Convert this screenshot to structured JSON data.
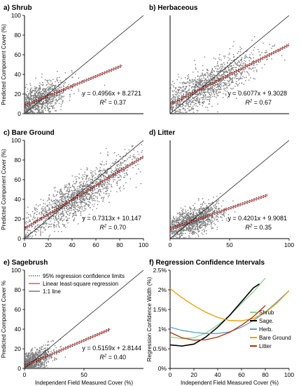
{
  "chart_data": [
    {
      "type": "scatter",
      "title": "a)   Shrub",
      "ylabel": "Predicted Component Cover (%)",
      "xlabel": "",
      "xlim": [
        0,
        100
      ],
      "ylim": [
        0,
        100
      ],
      "xticks": [],
      "yticks": [
        0,
        20,
        40,
        60,
        80,
        100
      ],
      "equation": "y = 0.4956x + 8.2721",
      "r2_label": "R",
      "r2_value": "= 0.37",
      "slope": 0.4956,
      "intercept": 8.2721,
      "fit_range": [
        0,
        82
      ],
      "cloud": {
        "x_mean": 12,
        "x_sd": 12,
        "x_max": 82,
        "noise_sd": 8,
        "n": 900,
        "seed": 11
      }
    },
    {
      "type": "scatter",
      "title": "b) Herbaceous",
      "ylabel": "",
      "xlabel": "",
      "xlim": [
        0,
        100
      ],
      "ylim": [
        0,
        100
      ],
      "xticks": [],
      "yticks": [],
      "equation": "y = 0.6077x + 9.3028",
      "r2_label": "R",
      "r2_value": "= 0.67",
      "slope": 0.6077,
      "intercept": 9.3028,
      "fit_range": [
        0,
        100
      ],
      "cloud": {
        "x_mean": 30,
        "x_sd": 22,
        "x_max": 100,
        "noise_sd": 10,
        "n": 1200,
        "seed": 23
      }
    },
    {
      "type": "scatter",
      "title": "c) Bare Ground",
      "ylabel": "Predicted Component Cover (%)",
      "xlabel": "",
      "xlim": [
        0,
        100
      ],
      "ylim": [
        0,
        100
      ],
      "xticks": [
        0,
        20,
        40,
        60,
        80,
        100
      ],
      "yticks": [
        0,
        20,
        40,
        60,
        80,
        100
      ],
      "equation": "y = 0.7313x + 10.147",
      "r2_label": "R",
      "r2_value": "= 0.70",
      "slope": 0.7313,
      "intercept": 10.147,
      "fit_range": [
        0,
        100
      ],
      "cloud": {
        "x_mean": 45,
        "x_sd": 22,
        "x_max": 100,
        "noise_sd": 10,
        "n": 1400,
        "seed": 37
      }
    },
    {
      "type": "scatter",
      "title": "d) Litter",
      "ylabel": "",
      "xlabel": "",
      "xlim": [
        0,
        100
      ],
      "ylim": [
        0,
        100
      ],
      "xticks": [
        0,
        50,
        100
      ],
      "yticks": [],
      "equation": "y = 0.4201x + 9.9081",
      "r2_label": "R",
      "r2_value": "= 0.35",
      "slope": 0.4201,
      "intercept": 9.9081,
      "fit_range": [
        0,
        82
      ],
      "cloud": {
        "x_mean": 20,
        "x_sd": 12,
        "x_max": 80,
        "noise_sd": 7,
        "n": 1100,
        "seed": 53
      }
    },
    {
      "type": "scatter",
      "title": "e) Sagebrush",
      "ylabel": "Predicted Component Cover %",
      "xlabel": "Independent Field Measured Cover (%)",
      "xlim": [
        0,
        100
      ],
      "ylim": [
        0,
        100
      ],
      "xticks": [
        0,
        50
      ],
      "yticks": [
        0,
        20,
        40,
        60,
        80,
        100
      ],
      "equation": "y = 0.5159x + 2.8144",
      "r2_label": "R",
      "r2_value": "= 0.40",
      "slope": 0.5159,
      "intercept": 2.8144,
      "fit_range": [
        0,
        72
      ],
      "cloud": {
        "x_mean": 6,
        "x_sd": 9,
        "x_max": 72,
        "noise_sd": 6,
        "n": 800,
        "seed": 71
      },
      "legend": [
        {
          "label": "95% regression confidence limits",
          "style": "dotted",
          "color": "#222222"
        },
        {
          "label": "Linear least-square regression",
          "style": "solid",
          "color": "#e03030"
        },
        {
          "label": "1:1 line",
          "style": "solid",
          "color": "#555555"
        }
      ]
    },
    {
      "type": "line",
      "title": "f) Regression Confidence Intervals",
      "ylabel": "Regression Confidence Width (%)",
      "xlabel": "Independent Field Measured Cover (%)",
      "xlim": [
        0,
        100
      ],
      "ylim": [
        0,
        2.5
      ],
      "xticks": [
        0,
        20,
        40,
        60,
        80,
        100
      ],
      "yticks": [
        0,
        0.5,
        1,
        1.5,
        2,
        2.5
      ],
      "ytick_labels": [
        "0%",
        "0.5%",
        "1%",
        "1.5%",
        "2%",
        "2.5%"
      ],
      "series": [
        {
          "name": "Shrub",
          "color": "#8ed48e",
          "points": [
            [
              0,
              0.8
            ],
            [
              10,
              0.76
            ],
            [
              20,
              0.78
            ],
            [
              30,
              0.9
            ],
            [
              40,
              1.1
            ],
            [
              50,
              1.35
            ],
            [
              60,
              1.65
            ],
            [
              70,
              1.95
            ],
            [
              80,
              2.3
            ]
          ]
        },
        {
          "name": "Sage.",
          "color": "#000000",
          "points": [
            [
              0,
              0.6
            ],
            [
              10,
              0.57
            ],
            [
              20,
              0.62
            ],
            [
              30,
              0.8
            ],
            [
              40,
              1.05
            ],
            [
              50,
              1.35
            ],
            [
              60,
              1.7
            ],
            [
              70,
              2.05
            ],
            [
              75,
              2.15
            ]
          ]
        },
        {
          "name": "Herb.",
          "color": "#5b9bd5",
          "points": [
            [
              0,
              1.05
            ],
            [
              10,
              0.97
            ],
            [
              20,
              0.92
            ],
            [
              30,
              0.89
            ],
            [
              40,
              0.89
            ],
            [
              50,
              0.93
            ],
            [
              60,
              1.05
            ],
            [
              70,
              1.22
            ],
            [
              80,
              1.43
            ],
            [
              90,
              1.7
            ],
            [
              100,
              1.98
            ]
          ]
        },
        {
          "name": "Bare Ground",
          "color": "#e8a000",
          "points": [
            [
              0,
              2.03
            ],
            [
              10,
              1.8
            ],
            [
              20,
              1.6
            ],
            [
              30,
              1.43
            ],
            [
              40,
              1.3
            ],
            [
              50,
              1.22
            ],
            [
              60,
              1.21
            ],
            [
              70,
              1.27
            ],
            [
              80,
              1.42
            ],
            [
              90,
              1.67
            ],
            [
              100,
              1.98
            ]
          ]
        },
        {
          "name": "Litter",
          "color": "#b03000",
          "points": [
            [
              0,
              0.92
            ],
            [
              10,
              0.78
            ],
            [
              20,
              0.72
            ],
            [
              30,
              0.73
            ],
            [
              40,
              0.8
            ],
            [
              50,
              0.92
            ],
            [
              60,
              1.1
            ],
            [
              70,
              1.32
            ],
            [
              80,
              1.6
            ]
          ]
        }
      ]
    }
  ]
}
